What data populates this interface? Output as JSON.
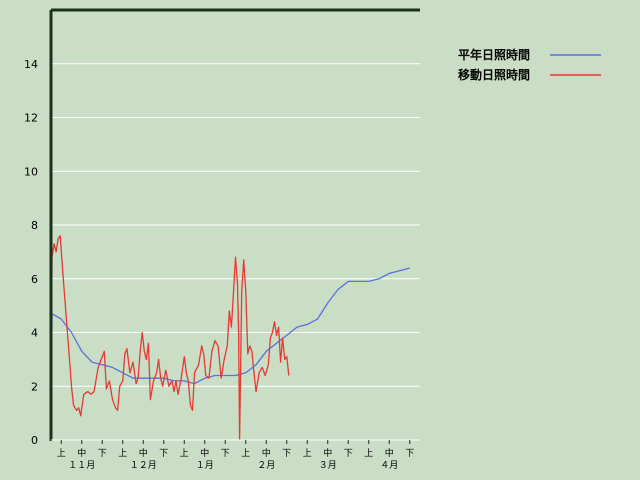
{
  "chart_data": {
    "type": "line",
    "ylim": [
      0,
      16
    ],
    "yticks": [
      0,
      2,
      4,
      6,
      8,
      10,
      12,
      14
    ],
    "grid": true,
    "legend_position": "top-right",
    "x_range": [
      0,
      18
    ],
    "period_labels": [
      "上",
      "中",
      "下",
      "上",
      "中",
      "下",
      "上",
      "中",
      "下",
      "上",
      "中",
      "下",
      "上",
      "中",
      "下",
      "上",
      "中",
      "下"
    ],
    "month_labels": [
      {
        "label": "１１月",
        "x": 1.5
      },
      {
        "label": "１２月",
        "x": 4.5
      },
      {
        "label": "１月",
        "x": 7.5
      },
      {
        "label": "２月",
        "x": 10.5
      },
      {
        "label": "３月",
        "x": 13.5
      },
      {
        "label": "４月",
        "x": 16.5
      }
    ],
    "series": [
      {
        "name": "平年日照時間",
        "color": "#5a6ee6",
        "points": [
          [
            0,
            0
          ],
          [
            0.05,
            4.7
          ],
          [
            0.5,
            4.5
          ],
          [
            1.0,
            4.0
          ],
          [
            1.5,
            3.3
          ],
          [
            2.0,
            2.9
          ],
          [
            2.5,
            2.8
          ],
          [
            3.0,
            2.7
          ],
          [
            3.5,
            2.5
          ],
          [
            4.0,
            2.3
          ],
          [
            4.5,
            2.3
          ],
          [
            5.0,
            2.3
          ],
          [
            5.5,
            2.3
          ],
          [
            6.0,
            2.2
          ],
          [
            6.5,
            2.2
          ],
          [
            7.0,
            2.1
          ],
          [
            7.5,
            2.3
          ],
          [
            8.0,
            2.4
          ],
          [
            8.5,
            2.4
          ],
          [
            9.0,
            2.4
          ],
          [
            9.5,
            2.5
          ],
          [
            10.0,
            2.8
          ],
          [
            10.5,
            3.3
          ],
          [
            11.0,
            3.6
          ],
          [
            11.5,
            3.9
          ],
          [
            12.0,
            4.2
          ],
          [
            12.5,
            4.3
          ],
          [
            13.0,
            4.5
          ],
          [
            13.5,
            5.1
          ],
          [
            14.0,
            5.6
          ],
          [
            14.5,
            5.9
          ],
          [
            15.0,
            5.9
          ],
          [
            15.5,
            5.9
          ],
          [
            16.0,
            6.0
          ],
          [
            16.5,
            6.2
          ],
          [
            17.0,
            6.3
          ],
          [
            17.5,
            6.4
          ]
        ]
      },
      {
        "name": "移動日照時間",
        "color": "#e63a32",
        "points": [
          [
            0,
            0
          ],
          [
            0.05,
            6.8
          ],
          [
            0.15,
            7.3
          ],
          [
            0.25,
            7.0
          ],
          [
            0.35,
            7.5
          ],
          [
            0.45,
            7.6
          ],
          [
            0.6,
            6.0
          ],
          [
            0.75,
            4.5
          ],
          [
            0.9,
            3.0
          ],
          [
            1.0,
            2.0
          ],
          [
            1.1,
            1.3
          ],
          [
            1.25,
            1.1
          ],
          [
            1.35,
            1.2
          ],
          [
            1.45,
            0.9
          ],
          [
            1.6,
            1.7
          ],
          [
            1.8,
            1.8
          ],
          [
            1.95,
            1.7
          ],
          [
            2.1,
            1.8
          ],
          [
            2.3,
            2.7
          ],
          [
            2.45,
            3.0
          ],
          [
            2.6,
            3.3
          ],
          [
            2.7,
            1.9
          ],
          [
            2.85,
            2.2
          ],
          [
            3.0,
            1.5
          ],
          [
            3.15,
            1.2
          ],
          [
            3.25,
            1.1
          ],
          [
            3.35,
            2.0
          ],
          [
            3.5,
            2.2
          ],
          [
            3.6,
            3.2
          ],
          [
            3.7,
            3.4
          ],
          [
            3.85,
            2.5
          ],
          [
            4.0,
            2.9
          ],
          [
            4.15,
            2.1
          ],
          [
            4.25,
            2.3
          ],
          [
            4.35,
            3.3
          ],
          [
            4.45,
            4.0
          ],
          [
            4.55,
            3.3
          ],
          [
            4.65,
            3.0
          ],
          [
            4.75,
            3.6
          ],
          [
            4.85,
            1.5
          ],
          [
            5.0,
            2.2
          ],
          [
            5.15,
            2.5
          ],
          [
            5.25,
            3.0
          ],
          [
            5.35,
            2.3
          ],
          [
            5.45,
            2.0
          ],
          [
            5.6,
            2.6
          ],
          [
            5.75,
            2.0
          ],
          [
            5.9,
            2.2
          ],
          [
            6.0,
            1.8
          ],
          [
            6.1,
            2.2
          ],
          [
            6.2,
            1.7
          ],
          [
            6.35,
            2.3
          ],
          [
            6.5,
            3.1
          ],
          [
            6.6,
            2.5
          ],
          [
            6.7,
            2.2
          ],
          [
            6.8,
            1.3
          ],
          [
            6.9,
            1.1
          ],
          [
            7.0,
            2.5
          ],
          [
            7.2,
            2.8
          ],
          [
            7.35,
            3.5
          ],
          [
            7.45,
            3.2
          ],
          [
            7.55,
            2.4
          ],
          [
            7.7,
            2.3
          ],
          [
            7.85,
            3.3
          ],
          [
            8.0,
            3.7
          ],
          [
            8.15,
            3.5
          ],
          [
            8.3,
            2.3
          ],
          [
            8.45,
            3.0
          ],
          [
            8.6,
            3.5
          ],
          [
            8.7,
            4.8
          ],
          [
            8.8,
            4.2
          ],
          [
            8.9,
            5.5
          ],
          [
            9.0,
            6.8
          ],
          [
            9.1,
            5.8
          ],
          [
            9.15,
            4.0
          ],
          [
            9.2,
            0.0
          ],
          [
            9.3,
            5.5
          ],
          [
            9.4,
            6.7
          ],
          [
            9.5,
            5.5
          ],
          [
            9.6,
            3.2
          ],
          [
            9.7,
            3.5
          ],
          [
            9.8,
            3.3
          ],
          [
            9.9,
            2.5
          ],
          [
            10.0,
            1.8
          ],
          [
            10.15,
            2.5
          ],
          [
            10.3,
            2.7
          ],
          [
            10.45,
            2.4
          ],
          [
            10.6,
            2.8
          ],
          [
            10.7,
            3.8
          ],
          [
            10.8,
            4.0
          ],
          [
            10.9,
            4.4
          ],
          [
            11.0,
            3.9
          ],
          [
            11.1,
            4.2
          ],
          [
            11.2,
            2.9
          ],
          [
            11.3,
            3.8
          ],
          [
            11.4,
            3.0
          ],
          [
            11.5,
            3.1
          ],
          [
            11.6,
            2.4
          ]
        ]
      }
    ]
  }
}
